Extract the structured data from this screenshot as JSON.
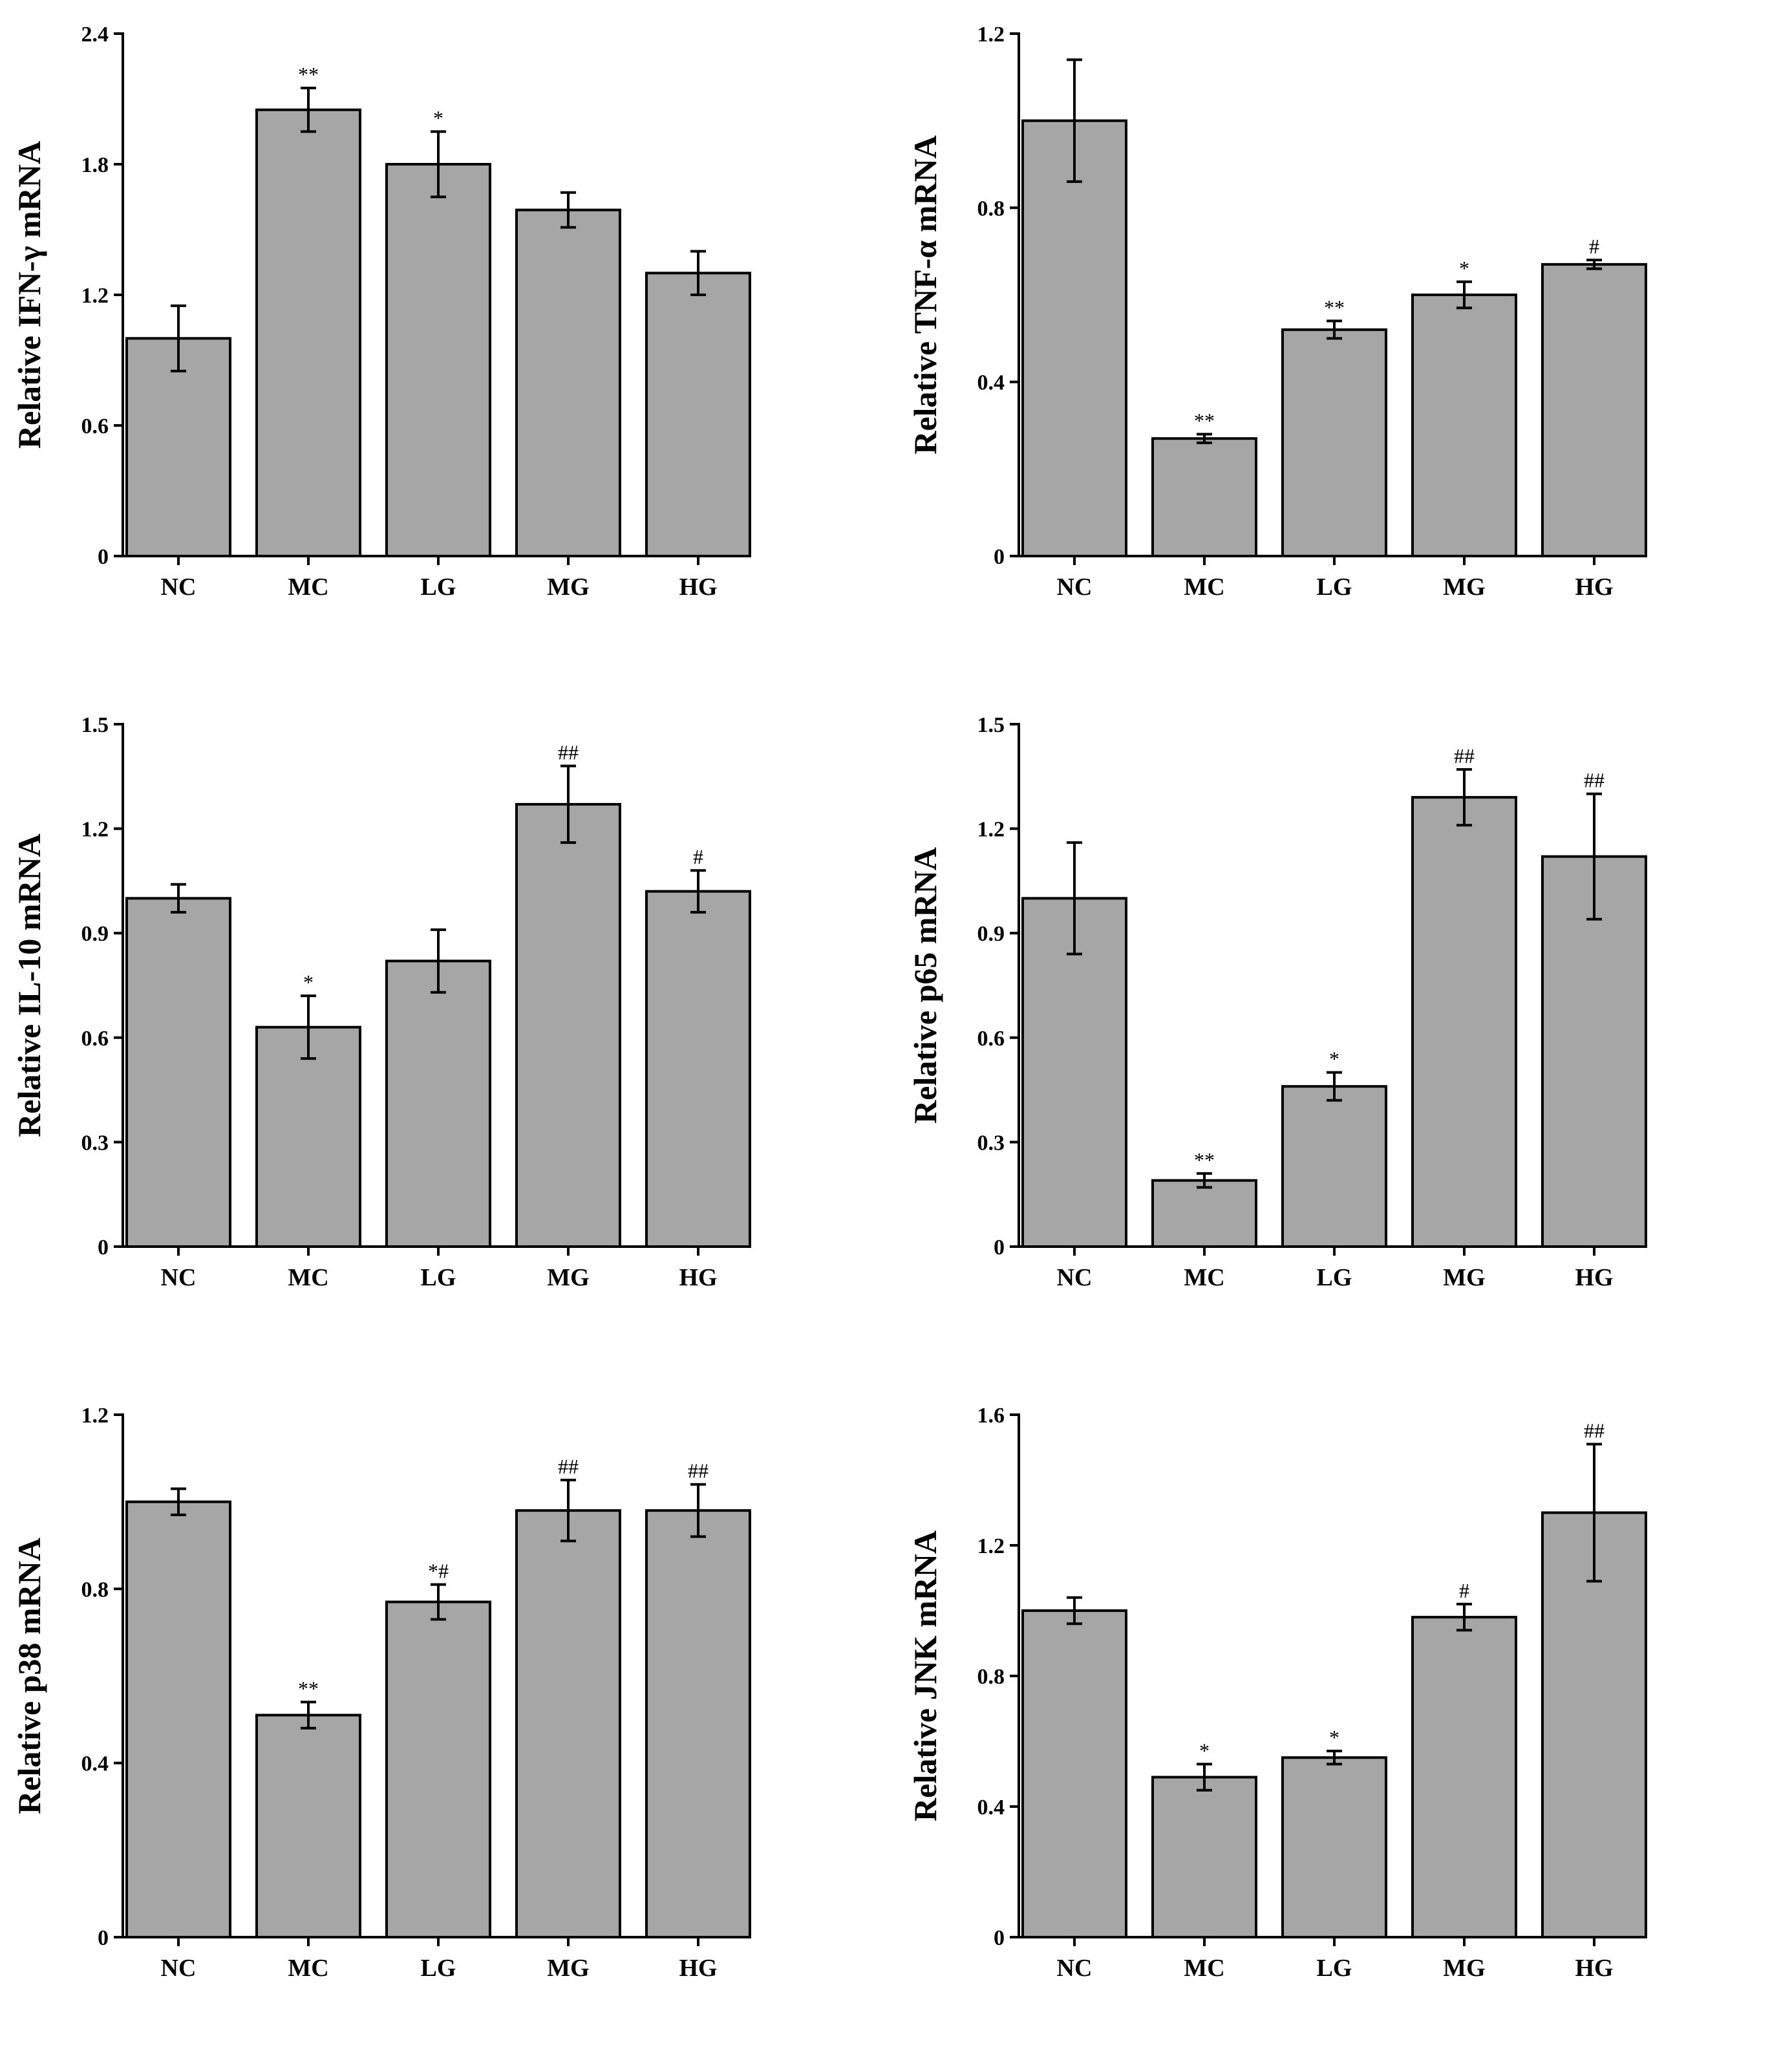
{
  "chart_data": [
    {
      "type": "bar",
      "ylabel": "Relative IFN-γ mRNA",
      "categories": [
        "NC",
        "MC",
        "LG",
        "MG",
        "HG"
      ],
      "values": [
        1.0,
        2.05,
        1.8,
        1.59,
        1.3
      ],
      "errors": [
        0.15,
        0.1,
        0.15,
        0.08,
        0.1
      ],
      "significance": [
        "",
        "**",
        "*",
        "",
        ""
      ],
      "ylim": [
        0,
        2.4
      ],
      "yticks": [
        0,
        0.6,
        1.2,
        1.8,
        2.4
      ],
      "ytick_labels": [
        "0",
        "0.6",
        "1.2",
        "1.8",
        "2.4"
      ]
    },
    {
      "type": "bar",
      "ylabel": "Relative TNF-α mRNA",
      "categories": [
        "NC",
        "MC",
        "LG",
        "MG",
        "HG"
      ],
      "values": [
        1.0,
        0.27,
        0.52,
        0.6,
        0.67
      ],
      "errors": [
        0.14,
        0.01,
        0.02,
        0.03,
        0.01
      ],
      "significance": [
        "",
        "**",
        "**",
        "*",
        "#"
      ],
      "ylim": [
        0,
        1.2
      ],
      "yticks": [
        0,
        0.4,
        0.8,
        1.2
      ],
      "ytick_labels": [
        "0",
        "0.4",
        "0.8",
        "1.2"
      ]
    },
    {
      "type": "bar",
      "ylabel": "Relative IL-10 mRNA",
      "categories": [
        "NC",
        "MC",
        "LG",
        "MG",
        "HG"
      ],
      "values": [
        1.0,
        0.63,
        0.82,
        1.27,
        1.02
      ],
      "errors": [
        0.04,
        0.09,
        0.09,
        0.11,
        0.06
      ],
      "significance": [
        "",
        "*",
        "",
        "##",
        "#"
      ],
      "ylim": [
        0,
        1.5
      ],
      "yticks": [
        0,
        0.3,
        0.6,
        0.9,
        1.2,
        1.5
      ],
      "ytick_labels": [
        "0",
        "0.3",
        "0.6",
        "0.9",
        "1.2",
        "1.5"
      ]
    },
    {
      "type": "bar",
      "ylabel": "Relative p65 mRNA",
      "categories": [
        "NC",
        "MC",
        "LG",
        "MG",
        "HG"
      ],
      "values": [
        1.0,
        0.19,
        0.46,
        1.29,
        1.12
      ],
      "errors": [
        0.16,
        0.02,
        0.04,
        0.08,
        0.18
      ],
      "significance": [
        "",
        "**",
        "*",
        "##",
        "##"
      ],
      "ylim": [
        0,
        1.5
      ],
      "yticks": [
        0,
        0.3,
        0.6,
        0.9,
        1.2,
        1.5
      ],
      "ytick_labels": [
        "0",
        "0.3",
        "0.6",
        "0.9",
        "1.2",
        "1.5"
      ]
    },
    {
      "type": "bar",
      "ylabel": "Relative p38 mRNA",
      "categories": [
        "NC",
        "MC",
        "LG",
        "MG",
        "HG"
      ],
      "values": [
        1.0,
        0.51,
        0.77,
        0.98,
        0.98
      ],
      "errors": [
        0.03,
        0.03,
        0.04,
        0.07,
        0.06
      ],
      "significance": [
        "",
        "**",
        "*#",
        "##",
        "##"
      ],
      "ylim": [
        0,
        1.2
      ],
      "yticks": [
        0,
        0.4,
        0.8,
        1.2
      ],
      "ytick_labels": [
        "0",
        "0.4",
        "0.8",
        "1.2"
      ]
    },
    {
      "type": "bar",
      "ylabel": "Relative JNK mRNA",
      "categories": [
        "NC",
        "MC",
        "LG",
        "MG",
        "HG"
      ],
      "values": [
        1.0,
        0.49,
        0.55,
        0.98,
        1.3
      ],
      "errors": [
        0.04,
        0.04,
        0.02,
        0.04,
        0.21
      ],
      "significance": [
        "",
        "*",
        "*",
        "#",
        "##"
      ],
      "ylim": [
        0,
        1.6
      ],
      "yticks": [
        0,
        0.4,
        0.8,
        1.2,
        1.6
      ],
      "ytick_labels": [
        "0",
        "0.4",
        "0.8",
        "1.2",
        "1.6"
      ]
    }
  ]
}
